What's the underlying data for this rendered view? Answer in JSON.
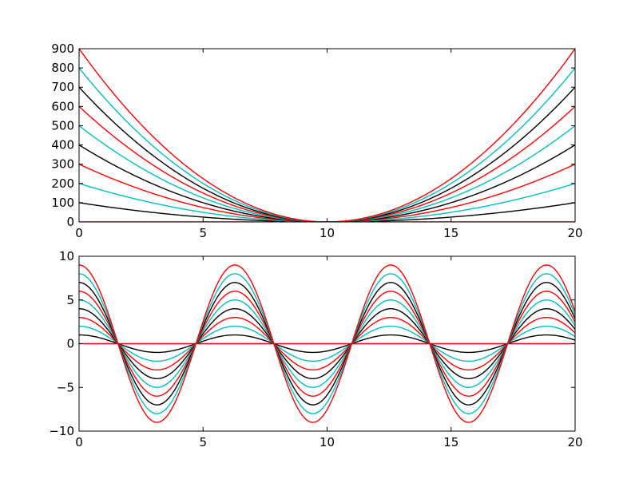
{
  "chart_data": [
    {
      "type": "line",
      "title": "",
      "xlabel": "",
      "ylabel": "",
      "xlim": [
        0,
        20
      ],
      "ylim": [
        0,
        900
      ],
      "grid": false,
      "legend": "none",
      "function": "y = k * (x - 10)^2",
      "x_samples": [
        0,
        1,
        2,
        3,
        4,
        5,
        6,
        7,
        8,
        9,
        10,
        11,
        12,
        13,
        14,
        15,
        16,
        17,
        18,
        19,
        20
      ],
      "xticks": [
        "0",
        "5",
        "10",
        "15",
        "20"
      ],
      "yticks": [
        "0",
        "100",
        "200",
        "300",
        "400",
        "500",
        "600",
        "700",
        "800",
        "900"
      ],
      "series": [
        {
          "k": 0,
          "color": "#ff0000",
          "values": [
            0,
            0,
            0,
            0,
            0,
            0,
            0,
            0,
            0,
            0,
            0,
            0,
            0,
            0,
            0,
            0,
            0,
            0,
            0,
            0,
            0
          ]
        },
        {
          "k": 1,
          "color": "#000000",
          "values": [
            100,
            81,
            64,
            49,
            36,
            25,
            16,
            9,
            4,
            1,
            0,
            1,
            4,
            9,
            16,
            25,
            36,
            49,
            64,
            81,
            100
          ]
        },
        {
          "k": 2,
          "color": "#00bfbf",
          "values": [
            200,
            162,
            128,
            98,
            72,
            50,
            32,
            18,
            8,
            2,
            0,
            2,
            8,
            18,
            32,
            50,
            72,
            98,
            128,
            162,
            200
          ]
        },
        {
          "k": 3,
          "color": "#ff0000",
          "values": [
            300,
            243,
            192,
            147,
            108,
            75,
            48,
            27,
            12,
            3,
            0,
            3,
            12,
            27,
            48,
            75,
            108,
            147,
            192,
            243,
            300
          ]
        },
        {
          "k": 4,
          "color": "#000000",
          "values": [
            400,
            324,
            256,
            196,
            144,
            100,
            64,
            36,
            16,
            4,
            0,
            4,
            16,
            36,
            64,
            100,
            144,
            196,
            256,
            324,
            400
          ]
        },
        {
          "k": 5,
          "color": "#00bfbf",
          "values": [
            500,
            405,
            320,
            245,
            180,
            125,
            80,
            45,
            20,
            5,
            0,
            5,
            20,
            45,
            80,
            125,
            180,
            245,
            320,
            405,
            500
          ]
        },
        {
          "k": 6,
          "color": "#ff0000",
          "values": [
            600,
            486,
            384,
            294,
            216,
            150,
            96,
            54,
            24,
            6,
            0,
            6,
            24,
            54,
            96,
            150,
            216,
            294,
            384,
            486,
            600
          ]
        },
        {
          "k": 7,
          "color": "#000000",
          "values": [
            700,
            567,
            448,
            343,
            252,
            175,
            112,
            63,
            28,
            7,
            0,
            7,
            28,
            63,
            112,
            175,
            252,
            343,
            448,
            567,
            700
          ]
        },
        {
          "k": 8,
          "color": "#00bfbf",
          "values": [
            800,
            648,
            512,
            392,
            288,
            200,
            128,
            72,
            32,
            8,
            0,
            8,
            32,
            72,
            128,
            200,
            288,
            392,
            512,
            648,
            800
          ]
        },
        {
          "k": 9,
          "color": "#ff0000",
          "values": [
            900,
            729,
            576,
            441,
            324,
            225,
            144,
            81,
            36,
            9,
            0,
            9,
            36,
            81,
            144,
            225,
            324,
            441,
            576,
            729,
            900
          ]
        }
      ]
    },
    {
      "type": "line",
      "title": "",
      "xlabel": "",
      "ylabel": "",
      "xlim": [
        0,
        20
      ],
      "ylim": [
        -10,
        10
      ],
      "grid": false,
      "legend": "none",
      "function": "y = k * cos(x)",
      "x_samples": [
        0,
        1,
        2,
        3,
        4,
        5,
        6,
        7,
        8,
        9,
        10,
        11,
        12,
        13,
        14,
        15,
        16,
        17,
        18,
        19,
        20
      ],
      "xticks": [
        "0",
        "5",
        "10",
        "15",
        "20"
      ],
      "yticks": [
        "−10",
        "−5",
        "0",
        "5",
        "10"
      ],
      "series": [
        {
          "k": 0,
          "color": "#ff0000",
          "values": [
            0,
            0,
            0,
            0,
            0,
            0,
            0,
            0,
            0,
            0,
            0,
            0,
            0,
            0,
            0,
            0,
            0,
            0,
            0,
            0,
            0
          ]
        },
        {
          "k": 1,
          "color": "#000000",
          "values": [
            1.0,
            0.54,
            -0.42,
            -0.99,
            -0.65,
            0.28,
            0.96,
            0.75,
            -0.15,
            -0.91,
            -0.84,
            0.0,
            0.84,
            0.91,
            0.14,
            -0.76,
            -0.96,
            -0.28,
            0.66,
            0.99,
            0.41
          ]
        },
        {
          "k": 2,
          "color": "#00bfbf",
          "values": [
            2.0,
            1.08,
            -0.83,
            -1.98,
            -1.31,
            0.57,
            1.92,
            1.51,
            -0.29,
            -1.82,
            -1.68,
            0.01,
            1.69,
            1.81,
            0.27,
            -1.52,
            -1.92,
            -0.55,
            1.32,
            1.98,
            0.82
          ]
        },
        {
          "k": 3,
          "color": "#ff0000",
          "values": [
            3.0,
            1.62,
            -1.25,
            -2.97,
            -1.96,
            0.85,
            2.88,
            2.26,
            -0.44,
            -2.73,
            -2.52,
            0.01,
            2.53,
            2.72,
            0.41,
            -2.28,
            -2.88,
            -0.83,
            1.98,
            2.97,
            1.22
          ]
        },
        {
          "k": 4,
          "color": "#000000",
          "values": [
            4.0,
            2.16,
            -1.66,
            -3.96,
            -2.61,
            1.13,
            3.84,
            3.02,
            -0.58,
            -3.64,
            -3.36,
            0.02,
            3.38,
            3.63,
            0.55,
            -3.04,
            -3.83,
            -1.1,
            2.64,
            3.96,
            1.63
          ]
        },
        {
          "k": 5,
          "color": "#00bfbf",
          "values": [
            5.0,
            2.7,
            -2.08,
            -4.95,
            -3.27,
            1.42,
            4.8,
            3.77,
            -0.73,
            -4.56,
            -4.2,
            0.02,
            4.22,
            4.54,
            0.68,
            -3.8,
            -4.79,
            -1.38,
            3.3,
            4.94,
            2.04
          ]
        },
        {
          "k": 6,
          "color": "#ff0000",
          "values": [
            6.0,
            3.24,
            -2.5,
            -5.94,
            -3.92,
            1.7,
            5.76,
            4.52,
            -0.87,
            -5.47,
            -5.03,
            0.03,
            5.06,
            5.45,
            0.82,
            -4.56,
            -5.75,
            -1.65,
            3.96,
            5.93,
            2.45
          ]
        },
        {
          "k": 7,
          "color": "#000000",
          "values": [
            7.0,
            3.78,
            -2.91,
            -6.93,
            -4.58,
            1.99,
            6.72,
            5.28,
            -1.02,
            -6.38,
            -5.87,
            0.03,
            5.91,
            6.36,
            0.96,
            -5.32,
            -6.71,
            -1.93,
            4.62,
            6.92,
            2.86
          ]
        },
        {
          "k": 8,
          "color": "#00bfbf",
          "values": [
            8.0,
            4.32,
            -3.33,
            -7.92,
            -5.23,
            2.27,
            7.68,
            6.03,
            -1.16,
            -7.29,
            -6.71,
            0.04,
            6.75,
            7.27,
            1.09,
            -6.08,
            -7.66,
            -2.2,
            5.28,
            7.9,
            3.26
          ]
        },
        {
          "k": 9,
          "color": "#ff0000",
          "values": [
            9.0,
            4.86,
            -3.75,
            -8.91,
            -5.88,
            2.55,
            8.64,
            6.79,
            -1.31,
            -8.2,
            -7.55,
            0.04,
            7.59,
            8.18,
            1.23,
            -6.84,
            -8.62,
            -2.48,
            5.94,
            8.89,
            3.67
          ]
        }
      ]
    }
  ]
}
